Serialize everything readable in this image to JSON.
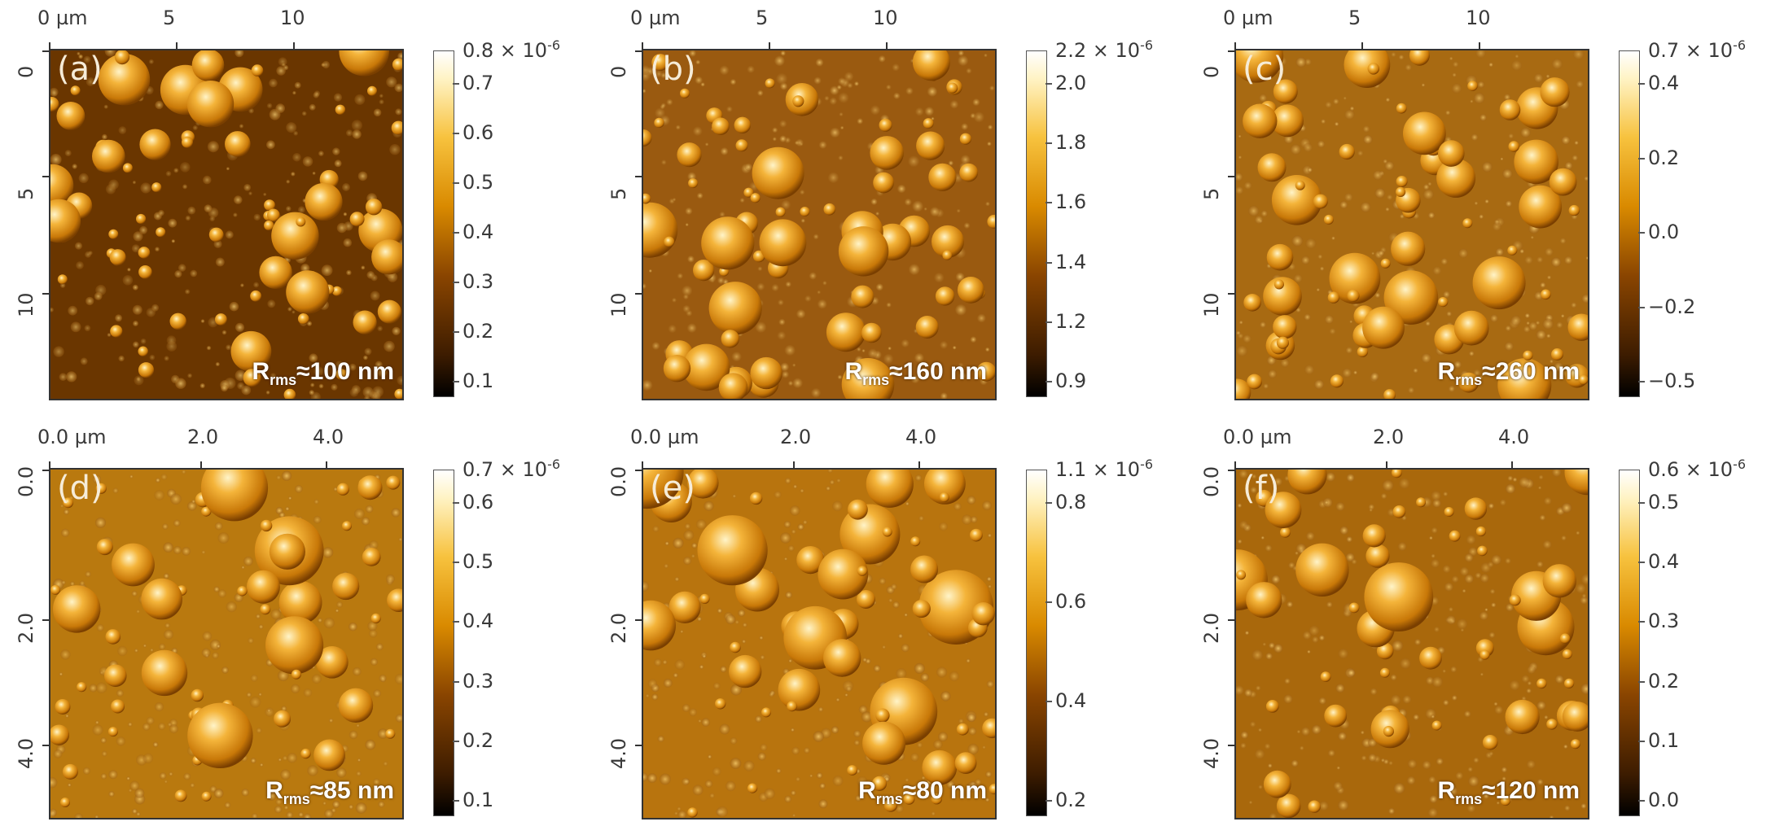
{
  "panels": [
    {
      "label": "(a)",
      "x_ticks": [
        "0 µm",
        "5",
        "10"
      ],
      "y_ticks": [
        "0",
        "5",
        "10"
      ],
      "cbar_top": "0.8 × 10-6",
      "cbar_ticks": [
        "0.7",
        "0.6",
        "0.5",
        "0.4",
        "0.3",
        "0.2",
        "0.1"
      ],
      "rms_prefix": "R",
      "rms_sub": "rms",
      "rms_value": "≈100 nm"
    },
    {
      "label": "(b)",
      "x_ticks": [
        "0 µm",
        "5",
        "10"
      ],
      "y_ticks": [
        "0",
        "5",
        "10"
      ],
      "cbar_top": "2.2 × 10-6",
      "cbar_ticks": [
        "2.0",
        "1.8",
        "1.6",
        "1.4",
        "1.2",
        "0.9"
      ],
      "rms_prefix": "R",
      "rms_sub": "rms",
      "rms_value": "≈160 nm"
    },
    {
      "label": "(c)",
      "x_ticks": [
        "0 µm",
        "5",
        "10"
      ],
      "y_ticks": [
        "0",
        "5",
        "10"
      ],
      "cbar_top": "0.7 × 10-6",
      "cbar_ticks": [
        "0.4",
        "0.2",
        "0.0",
        "−0.2",
        "−0.5"
      ],
      "rms_prefix": "R",
      "rms_sub": "rms",
      "rms_value": "≈260 nm"
    },
    {
      "label": "(d)",
      "x_ticks": [
        "0.0 µm",
        "2.0",
        "4.0"
      ],
      "y_ticks": [
        "0.0",
        "2.0",
        "4.0"
      ],
      "cbar_top": "0.7 × 10-6",
      "cbar_ticks": [
        "0.6",
        "0.5",
        "0.4",
        "0.3",
        "0.2",
        "0.1"
      ],
      "rms_prefix": "R",
      "rms_sub": "rms",
      "rms_value": "≈85 nm"
    },
    {
      "label": "(e)",
      "x_ticks": [
        "0.0 µm",
        "2.0",
        "4.0"
      ],
      "y_ticks": [
        "0.0",
        "2.0",
        "4.0"
      ],
      "cbar_top": "1.1 × 10-6",
      "cbar_ticks": [
        "0.8",
        "0.6",
        "0.4",
        "0.2"
      ],
      "rms_prefix": "R",
      "rms_sub": "rms",
      "rms_value": "≈80 nm"
    },
    {
      "label": "(f)",
      "x_ticks": [
        "0.0 µm",
        "2.0",
        "4.0"
      ],
      "y_ticks": [
        "0.0",
        "2.0",
        "4.0"
      ],
      "cbar_top": "0.6 × 10-6",
      "cbar_ticks": [
        "0.5",
        "0.4",
        "0.3",
        "0.2",
        "0.1",
        "0.0"
      ],
      "rms_prefix": "R",
      "rms_sub": "rms",
      "rms_value": "≈120 nm"
    }
  ]
}
